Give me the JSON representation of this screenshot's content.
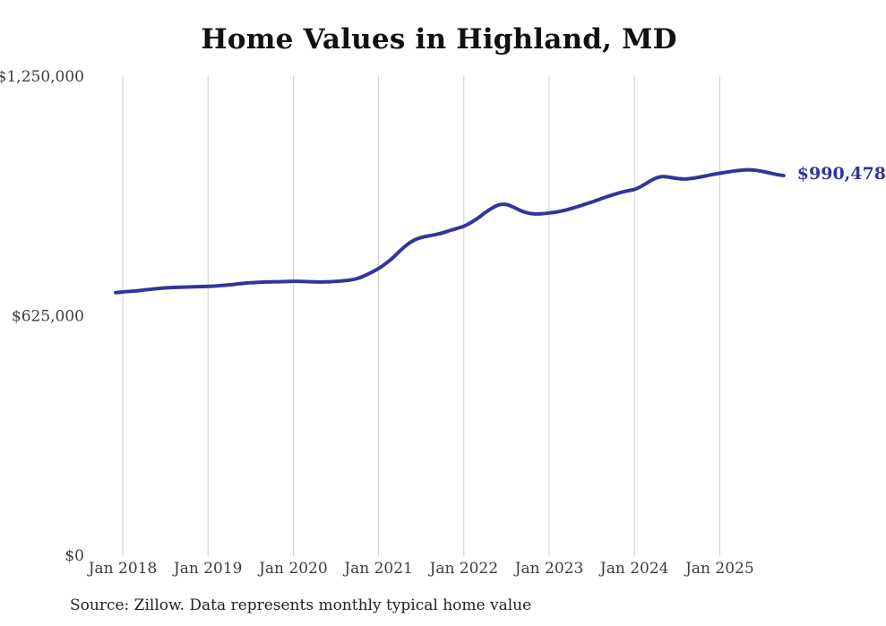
{
  "chart_data": {
    "type": "line",
    "title": "Home Values in Highland, MD",
    "x_start": "Dec 2017",
    "x_end": "Oct 2025",
    "x_interval": "month",
    "months_before_first_tick": 1,
    "series": [
      {
        "name": "Typical home value (monthly)",
        "values": [
          685000,
          687000,
          688500,
          690000,
          692000,
          694000,
          696000,
          697500,
          698500,
          699200,
          699800,
          700300,
          700800,
          701500,
          702500,
          704000,
          705500,
          707500,
          709500,
          711000,
          712000,
          712800,
          713200,
          713600,
          714200,
          714800,
          714500,
          713800,
          713200,
          713000,
          713500,
          714500,
          716000,
          718000,
          722000,
          729000,
          738000,
          748000,
          761000,
          776000,
          794000,
          810000,
          822000,
          829000,
          833000,
          836500,
          841000,
          847000,
          852500,
          858500,
          868000,
          880000,
          894000,
          906000,
          914500,
          915000,
          908000,
          899000,
          893000,
          890500,
          891000,
          893000,
          895500,
          899000,
          904000,
          909500,
          915500,
          921500,
          928000,
          934500,
          940500,
          946000,
          950500,
          954500,
          963000,
          974000,
          984000,
          988000,
          986000,
          983000,
          981500,
          983000,
          986000,
          989500,
          993500,
          996500,
          999500,
          1002500,
          1004500,
          1005500,
          1004500,
          1001500,
          997500,
          993500,
          990478
        ]
      }
    ],
    "x_ticks": [
      "Jan 2018",
      "Jan 2019",
      "Jan 2020",
      "Jan 2021",
      "Jan 2022",
      "Jan 2023",
      "Jan 2024",
      "Jan 2025"
    ],
    "y_ticks": [
      {
        "label": "$1,250,000",
        "value": 1250000
      },
      {
        "label": "$625,000",
        "value": 625000
      },
      {
        "label": "$0",
        "value": 0
      }
    ],
    "ylim": [
      0,
      1250000
    ],
    "grid": "vertical",
    "legend": "none",
    "end_label": "$990,478",
    "end_value": 990478,
    "colors": {
      "line": "#34349B",
      "gridline": "#CCCCCC",
      "axis_text": "#3D3D3D",
      "title_text": "#111111",
      "source_text": "#222222",
      "background": "#FFFFFF"
    }
  },
  "source_note": "Source: Zillow. Data represents monthly typical home value"
}
